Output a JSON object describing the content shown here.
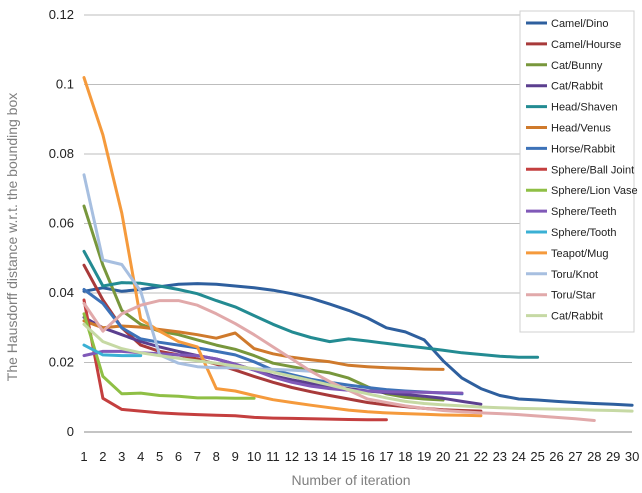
{
  "chart_data": {
    "type": "line",
    "title": "",
    "xlabel": "Number of iteration",
    "ylabel": "The Hausdorff distance w.r.t. the bounding box",
    "xlim": [
      1,
      30
    ],
    "ylim": [
      0,
      0.12
    ],
    "x_ticks": [
      1,
      2,
      3,
      4,
      5,
      6,
      7,
      8,
      9,
      10,
      11,
      12,
      13,
      14,
      15,
      16,
      17,
      18,
      19,
      20,
      21,
      22,
      23,
      24,
      25,
      26,
      27,
      28,
      29,
      30
    ],
    "y_ticks": [
      "0",
      "0.02",
      "0.04",
      "0.06",
      "0.08",
      "0.1",
      "0.12"
    ],
    "grid": "horizontal",
    "legend_position": "top-right",
    "series": [
      {
        "name": "Camel/Dino",
        "color": "#2e5f9e",
        "x": [
          1,
          2,
          3,
          4,
          5,
          6,
          7,
          8,
          9,
          10,
          11,
          12,
          13,
          14,
          15,
          16,
          17,
          18,
          19,
          20,
          21,
          22,
          23,
          24,
          25,
          26,
          27,
          28,
          29,
          30
        ],
        "values": [
          0.0405,
          0.0415,
          0.0405,
          0.041,
          0.0418,
          0.0425,
          0.0427,
          0.0425,
          0.042,
          0.0415,
          0.0408,
          0.0398,
          0.0385,
          0.0368,
          0.035,
          0.0328,
          0.03,
          0.0288,
          0.0265,
          0.0205,
          0.0155,
          0.0125,
          0.0105,
          0.0095,
          0.0092,
          0.0088,
          0.0085,
          0.0082,
          0.008,
          0.0077
        ]
      },
      {
        "name": "Camel/Hourse",
        "color": "#a83a3a",
        "x": [
          1,
          2,
          3,
          4,
          5,
          6,
          7,
          8,
          9,
          10,
          11,
          12,
          13,
          14,
          15,
          16,
          17,
          18,
          19,
          20,
          21,
          22
        ],
        "values": [
          0.048,
          0.038,
          0.03,
          0.025,
          0.0232,
          0.0222,
          0.021,
          0.0195,
          0.0178,
          0.016,
          0.0143,
          0.0128,
          0.0116,
          0.0105,
          0.0095,
          0.0085,
          0.0078,
          0.0073,
          0.0068,
          0.0064,
          0.0062,
          0.006
        ]
      },
      {
        "name": "Cat/Bunny",
        "color": "#78973c",
        "x": [
          1,
          2,
          3,
          4,
          5,
          6,
          7,
          8,
          9,
          10,
          11,
          12,
          13,
          14,
          15,
          16,
          17,
          18,
          19,
          20
        ],
        "values": [
          0.065,
          0.048,
          0.035,
          0.031,
          0.029,
          0.028,
          0.0265,
          0.025,
          0.0238,
          0.022,
          0.0198,
          0.0188,
          0.0178,
          0.017,
          0.0155,
          0.013,
          0.011,
          0.01,
          0.0095,
          0.0092
        ]
      },
      {
        "name": "Cat/Rabbit",
        "color": "#5b3f8f",
        "x": [
          1,
          2,
          3,
          4,
          5,
          6,
          7,
          8,
          9,
          10,
          11,
          12,
          13,
          14,
          15,
          16,
          17,
          18,
          19,
          20,
          21,
          22
        ],
        "values": [
          0.033,
          0.03,
          0.028,
          0.026,
          0.0245,
          0.0232,
          0.022,
          0.021,
          0.0195,
          0.0178,
          0.0162,
          0.015,
          0.014,
          0.0132,
          0.0125,
          0.0118,
          0.0113,
          0.0108,
          0.0103,
          0.0097,
          0.0088,
          0.008
        ]
      },
      {
        "name": "Head/Shaven",
        "color": "#238b92",
        "x": [
          1,
          2,
          3,
          4,
          5,
          6,
          7,
          8,
          9,
          10,
          11,
          12,
          13,
          14,
          15,
          16,
          17,
          18,
          19,
          20,
          21,
          22,
          23,
          24,
          25
        ],
        "values": [
          0.052,
          0.042,
          0.043,
          0.0428,
          0.042,
          0.041,
          0.0398,
          0.0378,
          0.036,
          0.0335,
          0.031,
          0.0288,
          0.0272,
          0.026,
          0.0268,
          0.0262,
          0.0255,
          0.0248,
          0.0242,
          0.0235,
          0.0228,
          0.0223,
          0.0218,
          0.0215,
          0.0215
        ]
      },
      {
        "name": "Head/Venus",
        "color": "#cf7a2c",
        "x": [
          1,
          2,
          3,
          4,
          5,
          6,
          7,
          8,
          9,
          10,
          11,
          12,
          13,
          14,
          15,
          16,
          17,
          18,
          19,
          20
        ],
        "values": [
          0.032,
          0.03,
          0.0305,
          0.0302,
          0.0295,
          0.0288,
          0.028,
          0.027,
          0.0285,
          0.024,
          0.0225,
          0.0215,
          0.0208,
          0.0202,
          0.0192,
          0.0188,
          0.0185,
          0.0183,
          0.0181,
          0.018
        ]
      },
      {
        "name": "Horse/Rabbit",
        "color": "#3d72b8",
        "x": [
          1,
          2,
          3,
          4,
          5,
          6,
          7,
          8,
          9,
          10,
          11,
          12,
          13,
          14,
          15,
          16,
          17,
          18,
          19,
          20,
          21
        ],
        "values": [
          0.041,
          0.037,
          0.03,
          0.0268,
          0.0258,
          0.025,
          0.0242,
          0.0232,
          0.0222,
          0.0202,
          0.0178,
          0.0165,
          0.0152,
          0.0143,
          0.0135,
          0.0128,
          0.0122,
          0.0118,
          0.0115,
          0.0112,
          0.011
        ]
      },
      {
        "name": "Sphere/Ball Joint",
        "color": "#c43f3f",
        "x": [
          1,
          2,
          3,
          4,
          5,
          6,
          7,
          8,
          9,
          10,
          11,
          12,
          13,
          14,
          15,
          16,
          17
        ],
        "values": [
          0.038,
          0.0097,
          0.0065,
          0.006,
          0.0055,
          0.0052,
          0.005,
          0.0048,
          0.0047,
          0.0042,
          0.004,
          0.0039,
          0.0038,
          0.0037,
          0.0036,
          0.0035,
          0.0035
        ]
      },
      {
        "name": "Sphere/Lion Vase",
        "color": "#8fbf45",
        "x": [
          1,
          2,
          3,
          4,
          5,
          6,
          7,
          8,
          9,
          10
        ],
        "values": [
          0.034,
          0.016,
          0.011,
          0.0112,
          0.0105,
          0.0103,
          0.0098,
          0.0098,
          0.0097,
          0.0097
        ]
      },
      {
        "name": "Sphere/Teeth",
        "color": "#8059b8",
        "x": [
          1,
          2,
          3,
          4,
          5,
          6,
          7,
          8,
          9,
          10,
          11,
          12,
          13,
          14,
          15,
          16,
          17,
          18,
          19,
          20,
          21
        ],
        "values": [
          0.022,
          0.0232,
          0.0232,
          0.0228,
          0.0225,
          0.0222,
          0.022,
          0.021,
          0.0195,
          0.0178,
          0.0158,
          0.0143,
          0.0132,
          0.0125,
          0.012,
          0.0118,
          0.0116,
          0.0115,
          0.0114,
          0.0113,
          0.0112
        ]
      },
      {
        "name": "Sphere/Tooth",
        "color": "#3ab0d4",
        "x": [
          1,
          2,
          3,
          4
        ],
        "values": [
          0.025,
          0.0222,
          0.022,
          0.022
        ]
      },
      {
        "name": "Teapot/Mug",
        "color": "#f59a3c",
        "x": [
          1,
          2,
          3,
          4,
          5,
          6,
          7,
          8,
          9,
          10,
          11,
          12,
          13,
          14,
          15,
          16,
          17,
          18,
          19,
          20,
          21,
          22
        ],
        "values": [
          0.102,
          0.0855,
          0.063,
          0.0325,
          0.029,
          0.026,
          0.0245,
          0.0125,
          0.0118,
          0.0105,
          0.0093,
          0.0085,
          0.0077,
          0.007,
          0.0063,
          0.0058,
          0.0055,
          0.0053,
          0.0051,
          0.0049,
          0.0048,
          0.0047
        ]
      },
      {
        "name": "Toru/Knot",
        "color": "#a7bfe0",
        "x": [
          1,
          2,
          3,
          4,
          5,
          6,
          7,
          8,
          9,
          10,
          11,
          12,
          13
        ],
        "values": [
          0.074,
          0.0495,
          0.0482,
          0.0405,
          0.0222,
          0.0198,
          0.0188,
          0.0185,
          0.0185,
          0.0182,
          0.018,
          0.0178,
          0.0175
        ]
      },
      {
        "name": "Toru/Star",
        "color": "#e1a9aa",
        "x": [
          1,
          2,
          3,
          4,
          5,
          6,
          7,
          8,
          9,
          10,
          11,
          12,
          13,
          14,
          15,
          16,
          17,
          18,
          19,
          20,
          21,
          22,
          23,
          24,
          25,
          26,
          27,
          28
        ],
        "values": [
          0.037,
          0.029,
          0.034,
          0.0365,
          0.0378,
          0.0378,
          0.0365,
          0.034,
          0.0312,
          0.028,
          0.0245,
          0.021,
          0.0175,
          0.0145,
          0.012,
          0.0095,
          0.0085,
          0.0075,
          0.0068,
          0.0062,
          0.0058,
          0.0055,
          0.0053,
          0.005,
          0.0046,
          0.0042,
          0.0038,
          0.0033
        ]
      },
      {
        "name": "Cat/Rabbit",
        "color": "#c6d9a4",
        "x": [
          1,
          2,
          3,
          4,
          5,
          6,
          7,
          8,
          9,
          10,
          11,
          12,
          13,
          14,
          15,
          16,
          17,
          18,
          19,
          20,
          21,
          22,
          23,
          24,
          25,
          26,
          27,
          28,
          29,
          30
        ],
        "values": [
          0.031,
          0.026,
          0.024,
          0.0228,
          0.022,
          0.0212,
          0.0205,
          0.0198,
          0.019,
          0.0182,
          0.0172,
          0.016,
          0.0148,
          0.0135,
          0.0122,
          0.011,
          0.0098,
          0.0088,
          0.0082,
          0.0078,
          0.0075,
          0.0072,
          0.007,
          0.0068,
          0.0067,
          0.0066,
          0.0065,
          0.0063,
          0.0062,
          0.006
        ]
      }
    ]
  }
}
